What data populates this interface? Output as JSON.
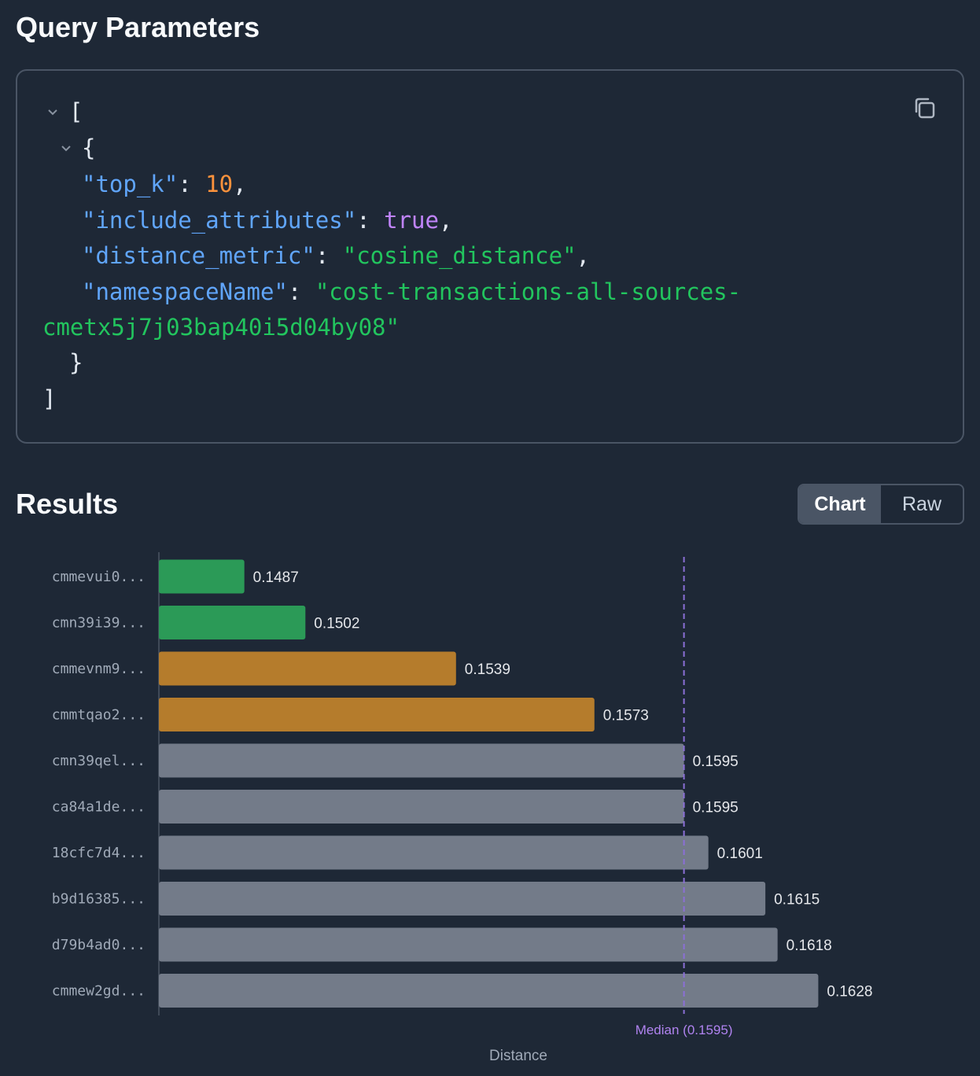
{
  "query_section": {
    "title": "Query Parameters",
    "copy_icon": "copy-icon"
  },
  "code": {
    "open_bracket": "[",
    "open_brace": "{",
    "close_brace": "}",
    "close_bracket": "]",
    "params": [
      {
        "key": "\"top_k\"",
        "value": "10",
        "type": "number",
        "trail": ","
      },
      {
        "key": "\"include_attributes\"",
        "value": "true",
        "type": "boolean",
        "trail": ","
      },
      {
        "key": "\"distance_metric\"",
        "value": "\"cosine_distance\"",
        "type": "string",
        "trail": ","
      },
      {
        "key": "\"namespaceName\"",
        "value": "\"cost-transactions-all-sources-",
        "value_cont": "cmetx5j7j03bap40i5d04by08\"",
        "type": "string",
        "trail": ""
      }
    ]
  },
  "results_section": {
    "title": "Results",
    "view_toggle": {
      "chart_label": "Chart",
      "raw_label": "Raw",
      "selected": "Chart"
    }
  },
  "chart_data": {
    "type": "bar",
    "orientation": "horizontal",
    "categories": [
      "cmmevui0...",
      "cmn39i39...",
      "cmmevnm9...",
      "cmmtqao2...",
      "cmn39qel...",
      "ca84a1de...",
      "18cfc7d4...",
      "b9d16385...",
      "d79b4ad0...",
      "cmmew2gd..."
    ],
    "values": [
      0.1487,
      0.1502,
      0.1539,
      0.1573,
      0.1595,
      0.1595,
      0.1601,
      0.1615,
      0.1618,
      0.1628
    ],
    "value_labels": [
      "0.1487",
      "0.1502",
      "0.1539",
      "0.1573",
      "0.1595",
      "0.1595",
      "0.1601",
      "0.1615",
      "0.1618",
      "0.1628"
    ],
    "bar_colors": [
      "#2b9a57",
      "#2b9a57",
      "#b57c2c",
      "#b57c2c",
      "#737b89",
      "#737b89",
      "#737b89",
      "#737b89",
      "#737b89",
      "#737b89"
    ],
    "median": 0.1595,
    "median_label": "Median (0.1595)",
    "median_color": "#8b6fd6",
    "xlabel": "Distance",
    "xlim": [
      0.1466,
      0.166
    ]
  }
}
